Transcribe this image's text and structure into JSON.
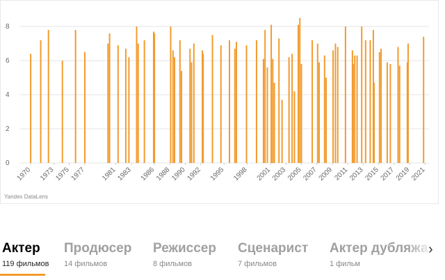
{
  "chart_data": {
    "type": "bar",
    "color": "#f29b2e",
    "grid": true,
    "x": [
      1970.0,
      1971.3,
      1972.3,
      1974.1,
      1975.8,
      1977.0,
      1980.0,
      1980.2,
      1981.3,
      1982.3,
      1982.7,
      1983.7,
      1983.9,
      1984.7,
      1985.9,
      1986.0,
      1988.1,
      1988.4,
      1988.6,
      1989.3,
      1989.5,
      1990.6,
      1990.8,
      1991.1,
      1992.2,
      1992.3,
      1993.5,
      1994.6,
      1995.7,
      1996.4,
      1996.6,
      1997.9,
      1999.2,
      2000.1,
      2000.3,
      2000.6,
      2001.1,
      2001.3,
      2001.5,
      2002.1,
      2002.5,
      2003.4,
      2003.8,
      2004.1,
      2004.6,
      2004.8,
      2005.0,
      2006.4,
      2007.1,
      2007.3,
      2008.0,
      2008.2,
      2009.1,
      2009.4,
      2009.7,
      2010.7,
      2011.6,
      2011.7,
      2011.9,
      2012.2,
      2012.8,
      2013.3,
      2013.9,
      2014.3,
      2014.4,
      2015.1,
      2015.3,
      2016.1,
      2016.5,
      2017.5,
      2017.7,
      2018.7,
      2018.8,
      2020.8
    ],
    "values": [
      6.4,
      7.2,
      7.8,
      6.0,
      7.8,
      6.5,
      7.0,
      7.6,
      6.9,
      6.7,
      6.2,
      8.0,
      7.0,
      7.2,
      7.7,
      7.6,
      8.0,
      6.6,
      6.2,
      7.2,
      5.4,
      6.7,
      5.9,
      7.0,
      6.6,
      6.4,
      7.5,
      6.9,
      7.2,
      6.7,
      7.1,
      6.9,
      7.2,
      6.1,
      7.8,
      5.6,
      8.1,
      6.1,
      4.7,
      7.3,
      3.7,
      6.2,
      6.4,
      4.2,
      8.1,
      8.5,
      5.8,
      7.2,
      7.0,
      5.9,
      6.3,
      5.0,
      6.6,
      7.0,
      6.8,
      8.0,
      6.6,
      5.8,
      6.3,
      6.3,
      8.0,
      7.2,
      7.2,
      7.8,
      4.7,
      6.5,
      6.7,
      5.9,
      5.8,
      6.8,
      5.7,
      5.9,
      7.0,
      7.4
    ],
    "xlim": [
      1969,
      2021.5
    ],
    "xticks": [
      1970,
      1973,
      1975,
      1977,
      1981,
      1983,
      1986,
      1988,
      1990,
      1992,
      1995,
      1998,
      2001,
      2003,
      2005,
      2007,
      2009,
      2011,
      2013,
      2015,
      2017,
      2019,
      2021
    ],
    "ylim": [
      0,
      8.9
    ],
    "yticks": [
      0,
      2,
      4,
      6,
      8
    ],
    "credit": "Yandex DataLens"
  },
  "tabs": [
    {
      "title": "Актер",
      "count": "119 фильмов"
    },
    {
      "title": "Продюсер",
      "count": "14 фильмов"
    },
    {
      "title": "Режиссер",
      "count": "8 фильмов"
    },
    {
      "title": "Сценарист",
      "count": "7 фильмов"
    },
    {
      "title": "Актер дубляжа",
      "count": "1 фильм"
    }
  ]
}
